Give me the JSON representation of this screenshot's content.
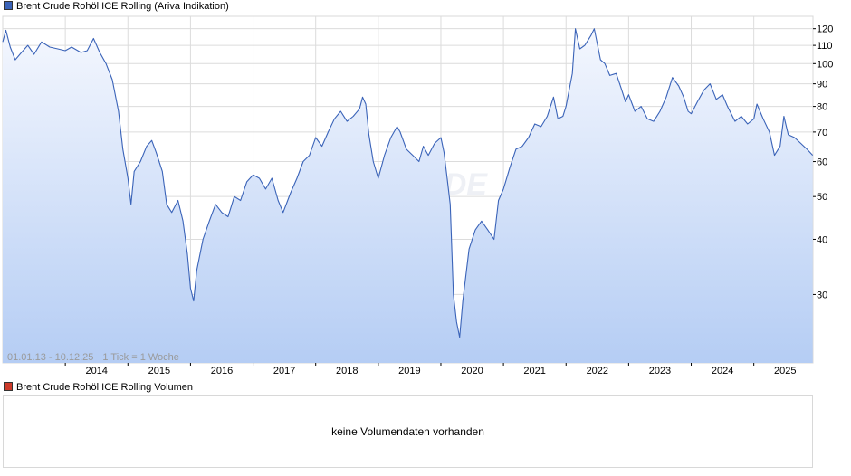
{
  "chart_data": {
    "type": "area",
    "title": "Brent Crude Rohöl ICE Rolling (Ariva Indikation)",
    "series": [
      {
        "name": "Brent Crude Rohöl ICE Rolling (Ariva Indikation)",
        "color": "#3a63b8",
        "fill_top": "#f4f7fe",
        "fill_bottom": "#b5cdf4",
        "points": [
          [
            2013.0,
            112
          ],
          [
            2013.05,
            119
          ],
          [
            2013.12,
            109
          ],
          [
            2013.2,
            102
          ],
          [
            2013.3,
            106
          ],
          [
            2013.4,
            110
          ],
          [
            2013.5,
            105
          ],
          [
            2013.62,
            112
          ],
          [
            2013.75,
            109
          ],
          [
            2013.88,
            108
          ],
          [
            2014.0,
            107
          ],
          [
            2014.1,
            109
          ],
          [
            2014.25,
            106
          ],
          [
            2014.35,
            107
          ],
          [
            2014.45,
            114
          ],
          [
            2014.55,
            106
          ],
          [
            2014.65,
            100
          ],
          [
            2014.75,
            92
          ],
          [
            2014.85,
            78
          ],
          [
            2014.92,
            64
          ],
          [
            2015.0,
            55
          ],
          [
            2015.05,
            48
          ],
          [
            2015.1,
            57
          ],
          [
            2015.2,
            60
          ],
          [
            2015.3,
            65
          ],
          [
            2015.38,
            67
          ],
          [
            2015.45,
            63
          ],
          [
            2015.55,
            57
          ],
          [
            2015.62,
            48
          ],
          [
            2015.7,
            46
          ],
          [
            2015.8,
            49
          ],
          [
            2015.88,
            44
          ],
          [
            2015.95,
            37
          ],
          [
            2016.0,
            31
          ],
          [
            2016.05,
            29
          ],
          [
            2016.1,
            34
          ],
          [
            2016.2,
            40
          ],
          [
            2016.3,
            44
          ],
          [
            2016.4,
            48
          ],
          [
            2016.5,
            46
          ],
          [
            2016.6,
            45
          ],
          [
            2016.7,
            50
          ],
          [
            2016.8,
            49
          ],
          [
            2016.9,
            54
          ],
          [
            2017.0,
            56
          ],
          [
            2017.1,
            55
          ],
          [
            2017.2,
            52
          ],
          [
            2017.3,
            55
          ],
          [
            2017.4,
            49
          ],
          [
            2017.48,
            46
          ],
          [
            2017.6,
            51
          ],
          [
            2017.7,
            55
          ],
          [
            2017.8,
            60
          ],
          [
            2017.9,
            62
          ],
          [
            2018.0,
            68
          ],
          [
            2018.1,
            65
          ],
          [
            2018.2,
            70
          ],
          [
            2018.3,
            75
          ],
          [
            2018.4,
            78
          ],
          [
            2018.5,
            74
          ],
          [
            2018.6,
            76
          ],
          [
            2018.7,
            79
          ],
          [
            2018.75,
            84
          ],
          [
            2018.8,
            81
          ],
          [
            2018.85,
            69
          ],
          [
            2018.92,
            60
          ],
          [
            2019.0,
            55
          ],
          [
            2019.1,
            62
          ],
          [
            2019.2,
            68
          ],
          [
            2019.3,
            72
          ],
          [
            2019.35,
            70
          ],
          [
            2019.45,
            64
          ],
          [
            2019.55,
            62
          ],
          [
            2019.65,
            60
          ],
          [
            2019.72,
            65
          ],
          [
            2019.8,
            62
          ],
          [
            2019.9,
            66
          ],
          [
            2020.0,
            68
          ],
          [
            2020.05,
            63
          ],
          [
            2020.1,
            55
          ],
          [
            2020.15,
            48
          ],
          [
            2020.2,
            30
          ],
          [
            2020.25,
            26
          ],
          [
            2020.3,
            24
          ],
          [
            2020.35,
            29
          ],
          [
            2020.45,
            38
          ],
          [
            2020.55,
            42
          ],
          [
            2020.65,
            44
          ],
          [
            2020.75,
            42
          ],
          [
            2020.85,
            40
          ],
          [
            2020.92,
            49
          ],
          [
            2021.0,
            52
          ],
          [
            2021.1,
            58
          ],
          [
            2021.2,
            64
          ],
          [
            2021.3,
            65
          ],
          [
            2021.4,
            68
          ],
          [
            2021.5,
            73
          ],
          [
            2021.6,
            72
          ],
          [
            2021.7,
            76
          ],
          [
            2021.8,
            84
          ],
          [
            2021.87,
            75
          ],
          [
            2021.95,
            76
          ],
          [
            2022.0,
            80
          ],
          [
            2022.1,
            95
          ],
          [
            2022.15,
            120
          ],
          [
            2022.22,
            108
          ],
          [
            2022.3,
            110
          ],
          [
            2022.4,
            116
          ],
          [
            2022.45,
            120
          ],
          [
            2022.55,
            102
          ],
          [
            2022.62,
            100
          ],
          [
            2022.7,
            94
          ],
          [
            2022.8,
            95
          ],
          [
            2022.88,
            88
          ],
          [
            2022.95,
            82
          ],
          [
            2023.0,
            85
          ],
          [
            2023.1,
            78
          ],
          [
            2023.2,
            80
          ],
          [
            2023.3,
            75
          ],
          [
            2023.4,
            74
          ],
          [
            2023.5,
            78
          ],
          [
            2023.6,
            84
          ],
          [
            2023.7,
            93
          ],
          [
            2023.8,
            89
          ],
          [
            2023.88,
            84
          ],
          [
            2023.95,
            78
          ],
          [
            2024.0,
            77
          ],
          [
            2024.1,
            82
          ],
          [
            2024.2,
            87
          ],
          [
            2024.3,
            90
          ],
          [
            2024.4,
            83
          ],
          [
            2024.5,
            85
          ],
          [
            2024.58,
            80
          ],
          [
            2024.7,
            74
          ],
          [
            2024.8,
            76
          ],
          [
            2024.9,
            73
          ],
          [
            2025.0,
            75
          ],
          [
            2025.05,
            81
          ],
          [
            2025.15,
            75
          ],
          [
            2025.25,
            70
          ],
          [
            2025.33,
            62
          ],
          [
            2025.42,
            65
          ],
          [
            2025.48,
            76
          ],
          [
            2025.55,
            69
          ],
          [
            2025.65,
            68
          ],
          [
            2025.75,
            66
          ],
          [
            2025.85,
            64
          ],
          [
            2025.94,
            62
          ]
        ]
      }
    ],
    "x_ticks": [
      "2014",
      "2015",
      "2016",
      "2017",
      "2018",
      "2019",
      "2020",
      "2021",
      "2022",
      "2023",
      "2024",
      "2025"
    ],
    "y_ticks": [
      "120",
      "110",
      "100",
      "90",
      "80",
      "70",
      "60",
      "50",
      "40",
      "30"
    ],
    "y_scale": "log",
    "xlim": [
      2013.0,
      2025.945
    ],
    "ylim": [
      21,
      128
    ],
    "grid": true,
    "range_label": "01.01.13 - 10.12.25",
    "interval_label": "1 Tick = 1 Woche",
    "watermark": "ARIVA.DE"
  },
  "volume_panel": {
    "title": "Brent Crude Rohöl ICE Rolling Volumen",
    "color": "#cc3a2a",
    "message": "keine Volumendaten vorhanden"
  }
}
